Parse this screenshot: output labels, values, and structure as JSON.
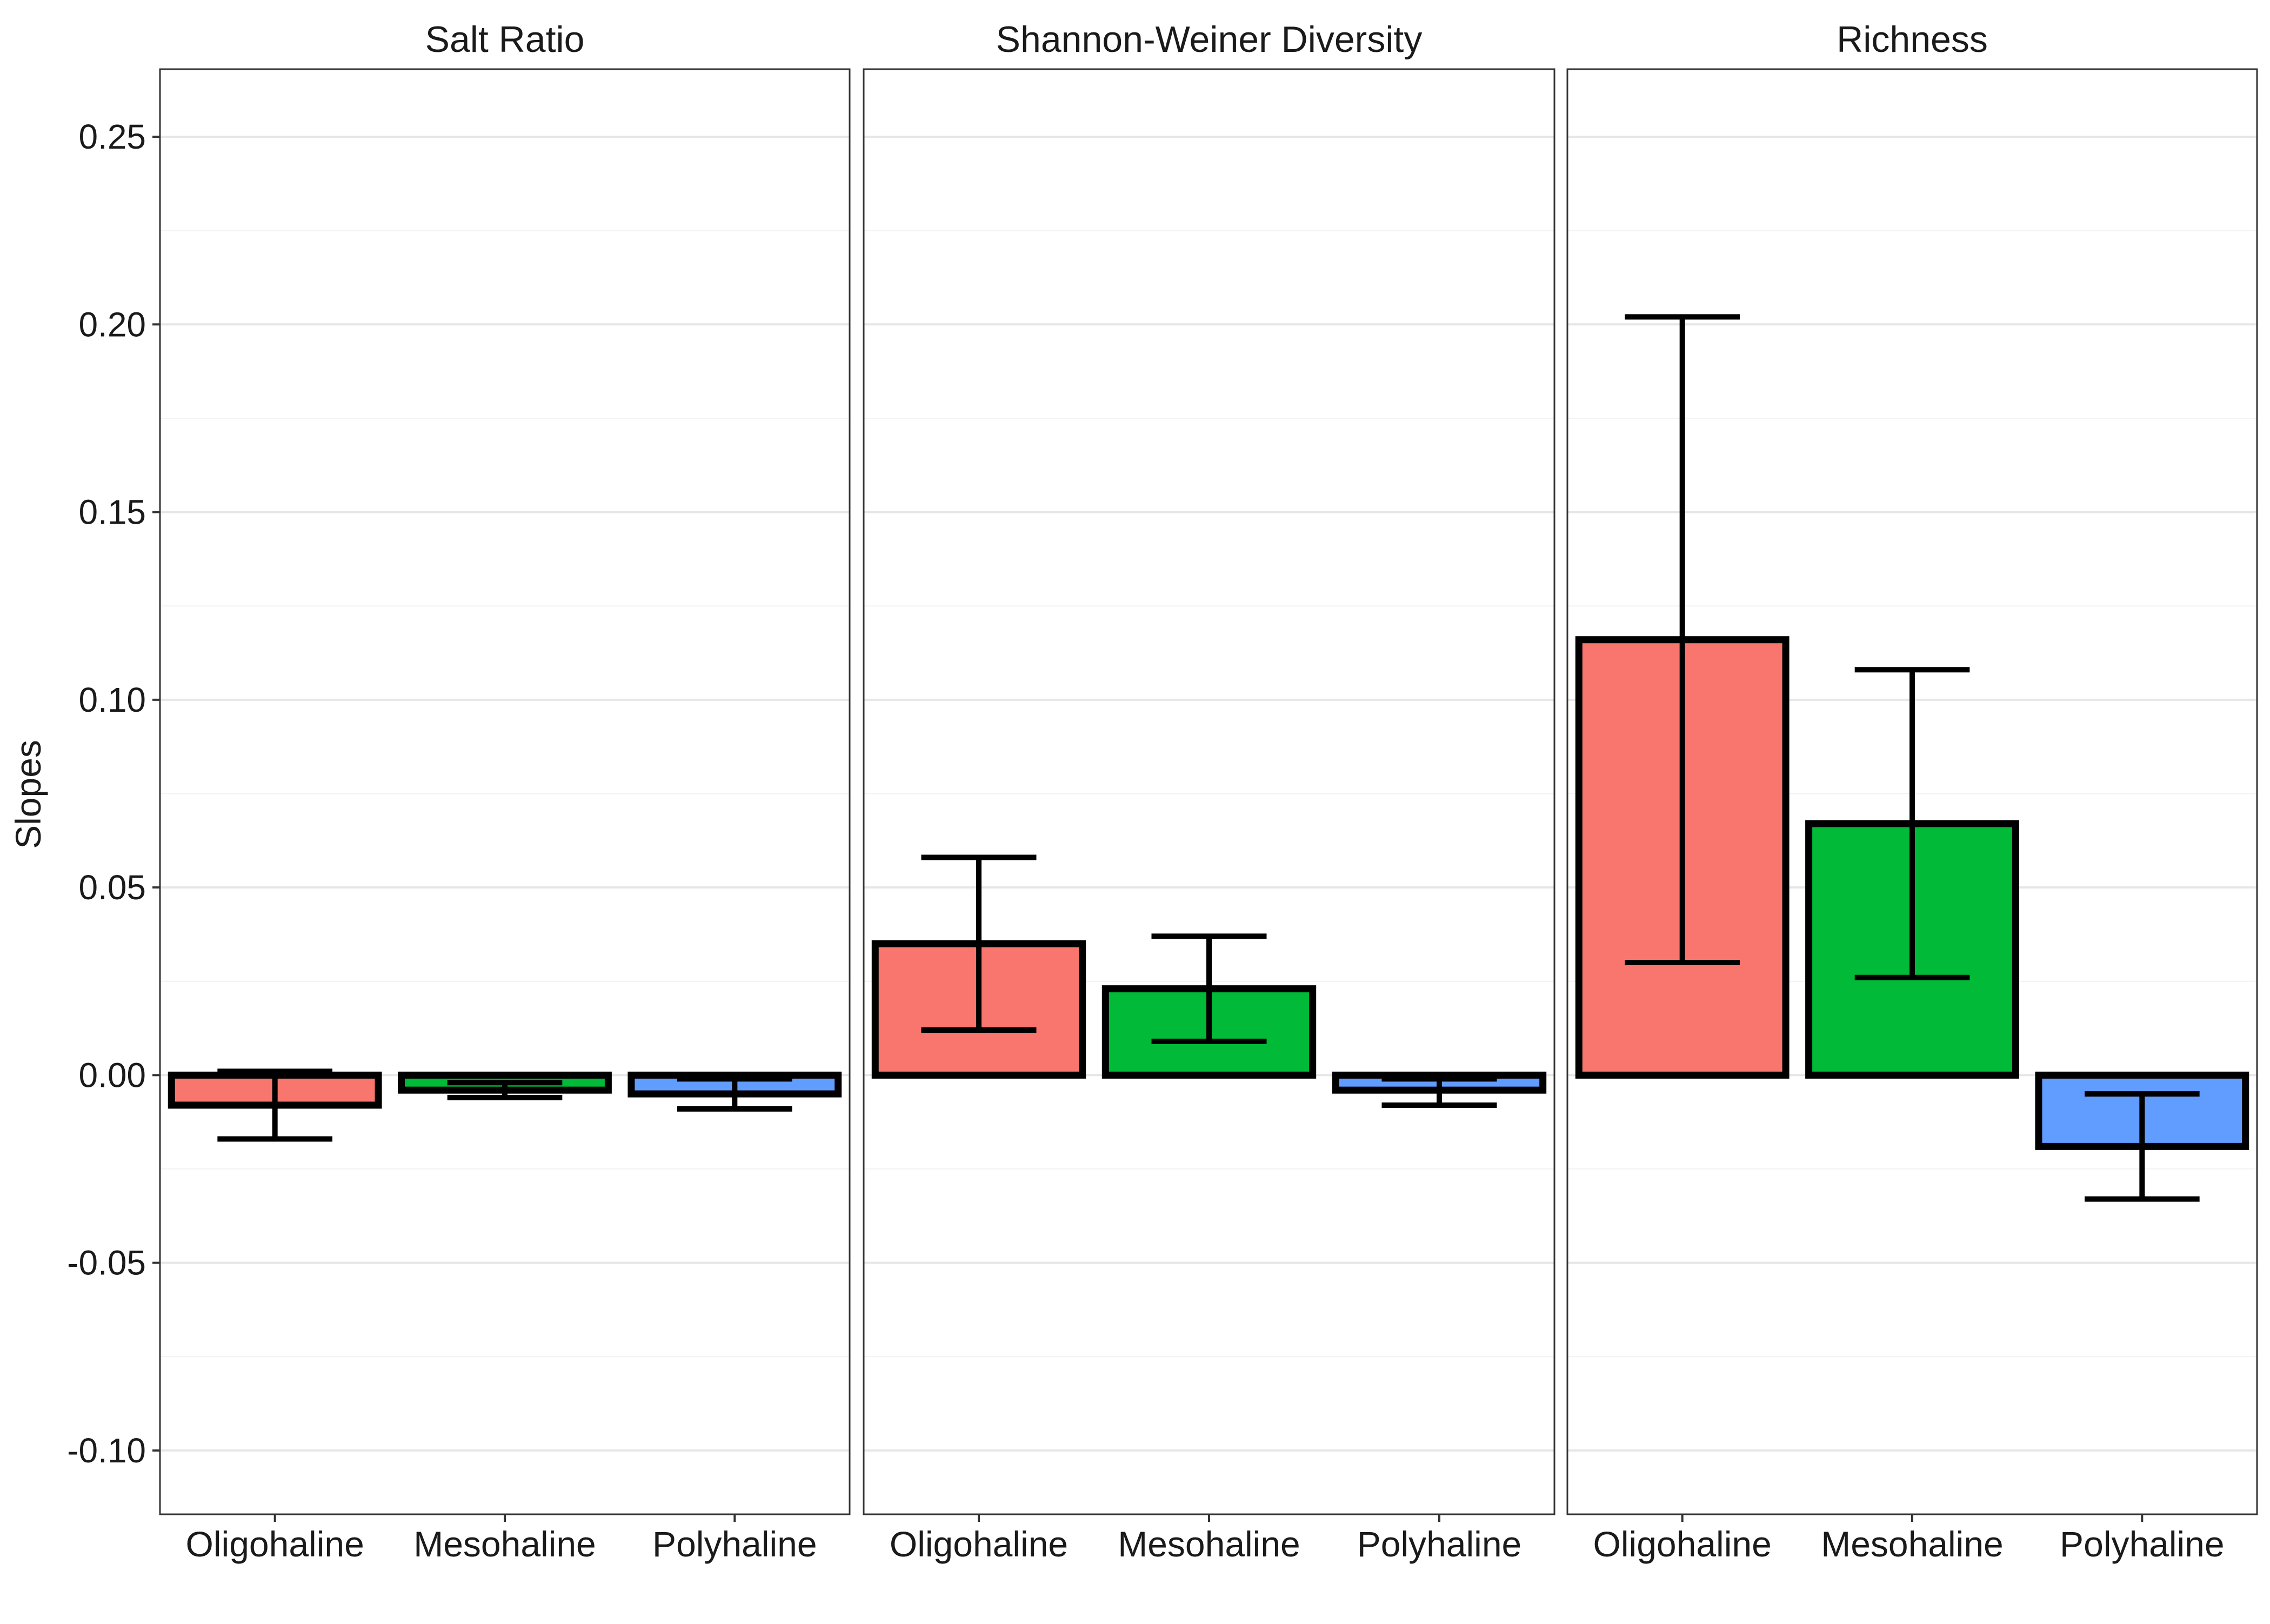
{
  "chart_data": {
    "type": "bar",
    "ylabel": "Slopes",
    "xlabel": "",
    "ylim": [
      -0.117,
      0.268
    ],
    "y_ticks": [
      -0.1,
      -0.05,
      0.0,
      0.05,
      0.1,
      0.15,
      0.2,
      0.25
    ],
    "y_tick_labels": [
      "-0.10",
      "-0.05",
      "0.00",
      "0.05",
      "0.10",
      "0.15",
      "0.20",
      "0.25"
    ],
    "y_minor_ticks": [
      -0.075,
      -0.025,
      0.025,
      0.075,
      0.125,
      0.175,
      0.225
    ],
    "categories": [
      "Oligohaline",
      "Mesohaline",
      "Polyhaline"
    ],
    "colors": [
      "#F8766D",
      "#00BA38",
      "#619CFF"
    ],
    "grid": true,
    "legend": "none",
    "panels": [
      {
        "title": "Salt Ratio",
        "values": [
          -0.008,
          -0.004,
          -0.005
        ],
        "err_low": [
          -0.017,
          -0.006,
          -0.009
        ],
        "err_high": [
          0.001,
          -0.002,
          -0.001
        ]
      },
      {
        "title": "Shannon-Weiner Diversity",
        "values": [
          0.035,
          0.023,
          -0.004
        ],
        "err_low": [
          0.012,
          0.009,
          -0.008
        ],
        "err_high": [
          0.058,
          0.037,
          -0.001
        ]
      },
      {
        "title": "Richness",
        "values": [
          0.116,
          0.067,
          -0.019
        ],
        "err_low": [
          0.03,
          0.026,
          -0.033
        ],
        "err_high": [
          0.202,
          0.108,
          -0.005
        ]
      }
    ]
  }
}
